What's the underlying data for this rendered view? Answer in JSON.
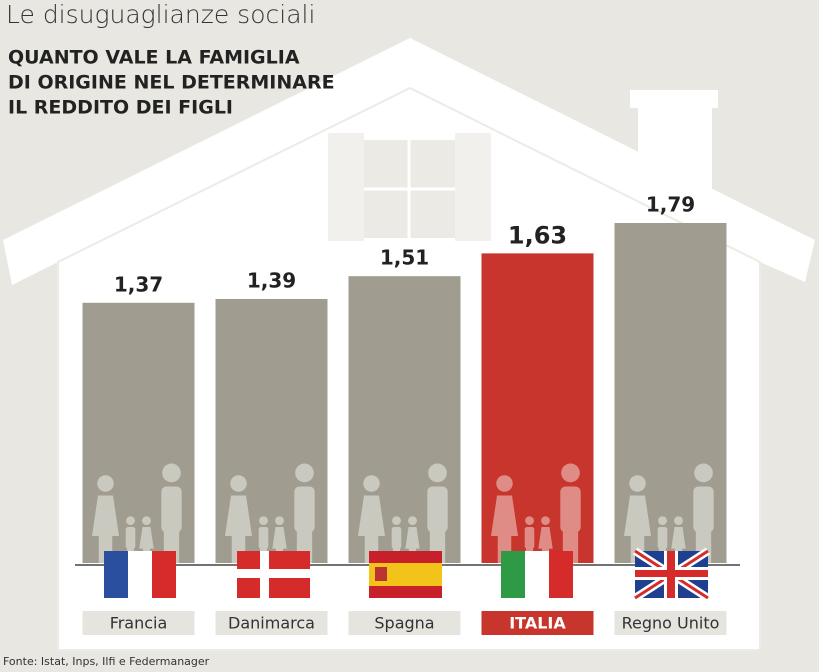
{
  "chart_data": {
    "type": "bar",
    "title": "Le disuguaglianze sociali",
    "subtitle": [
      "QUANTO VALE LA FAMIGLIA",
      "DI ORIGINE NEL DETERMINARE",
      "IL REDDITO DEI FIGLI"
    ],
    "categories": [
      "Francia",
      "Danimarca",
      "Spagna",
      "ITALIA",
      "Regno Unito"
    ],
    "values": [
      1.37,
      1.39,
      1.51,
      1.63,
      1.79
    ],
    "value_labels": [
      "1,37",
      "1,39",
      "1,51",
      "1,63",
      "1,79"
    ],
    "colors": [
      "#a09d90",
      "#a09d90",
      "#a09d90",
      "#c8352c",
      "#a09d90"
    ],
    "source": "Fonte: Istat, Inps, Ilfi e Federmanager"
  }
}
